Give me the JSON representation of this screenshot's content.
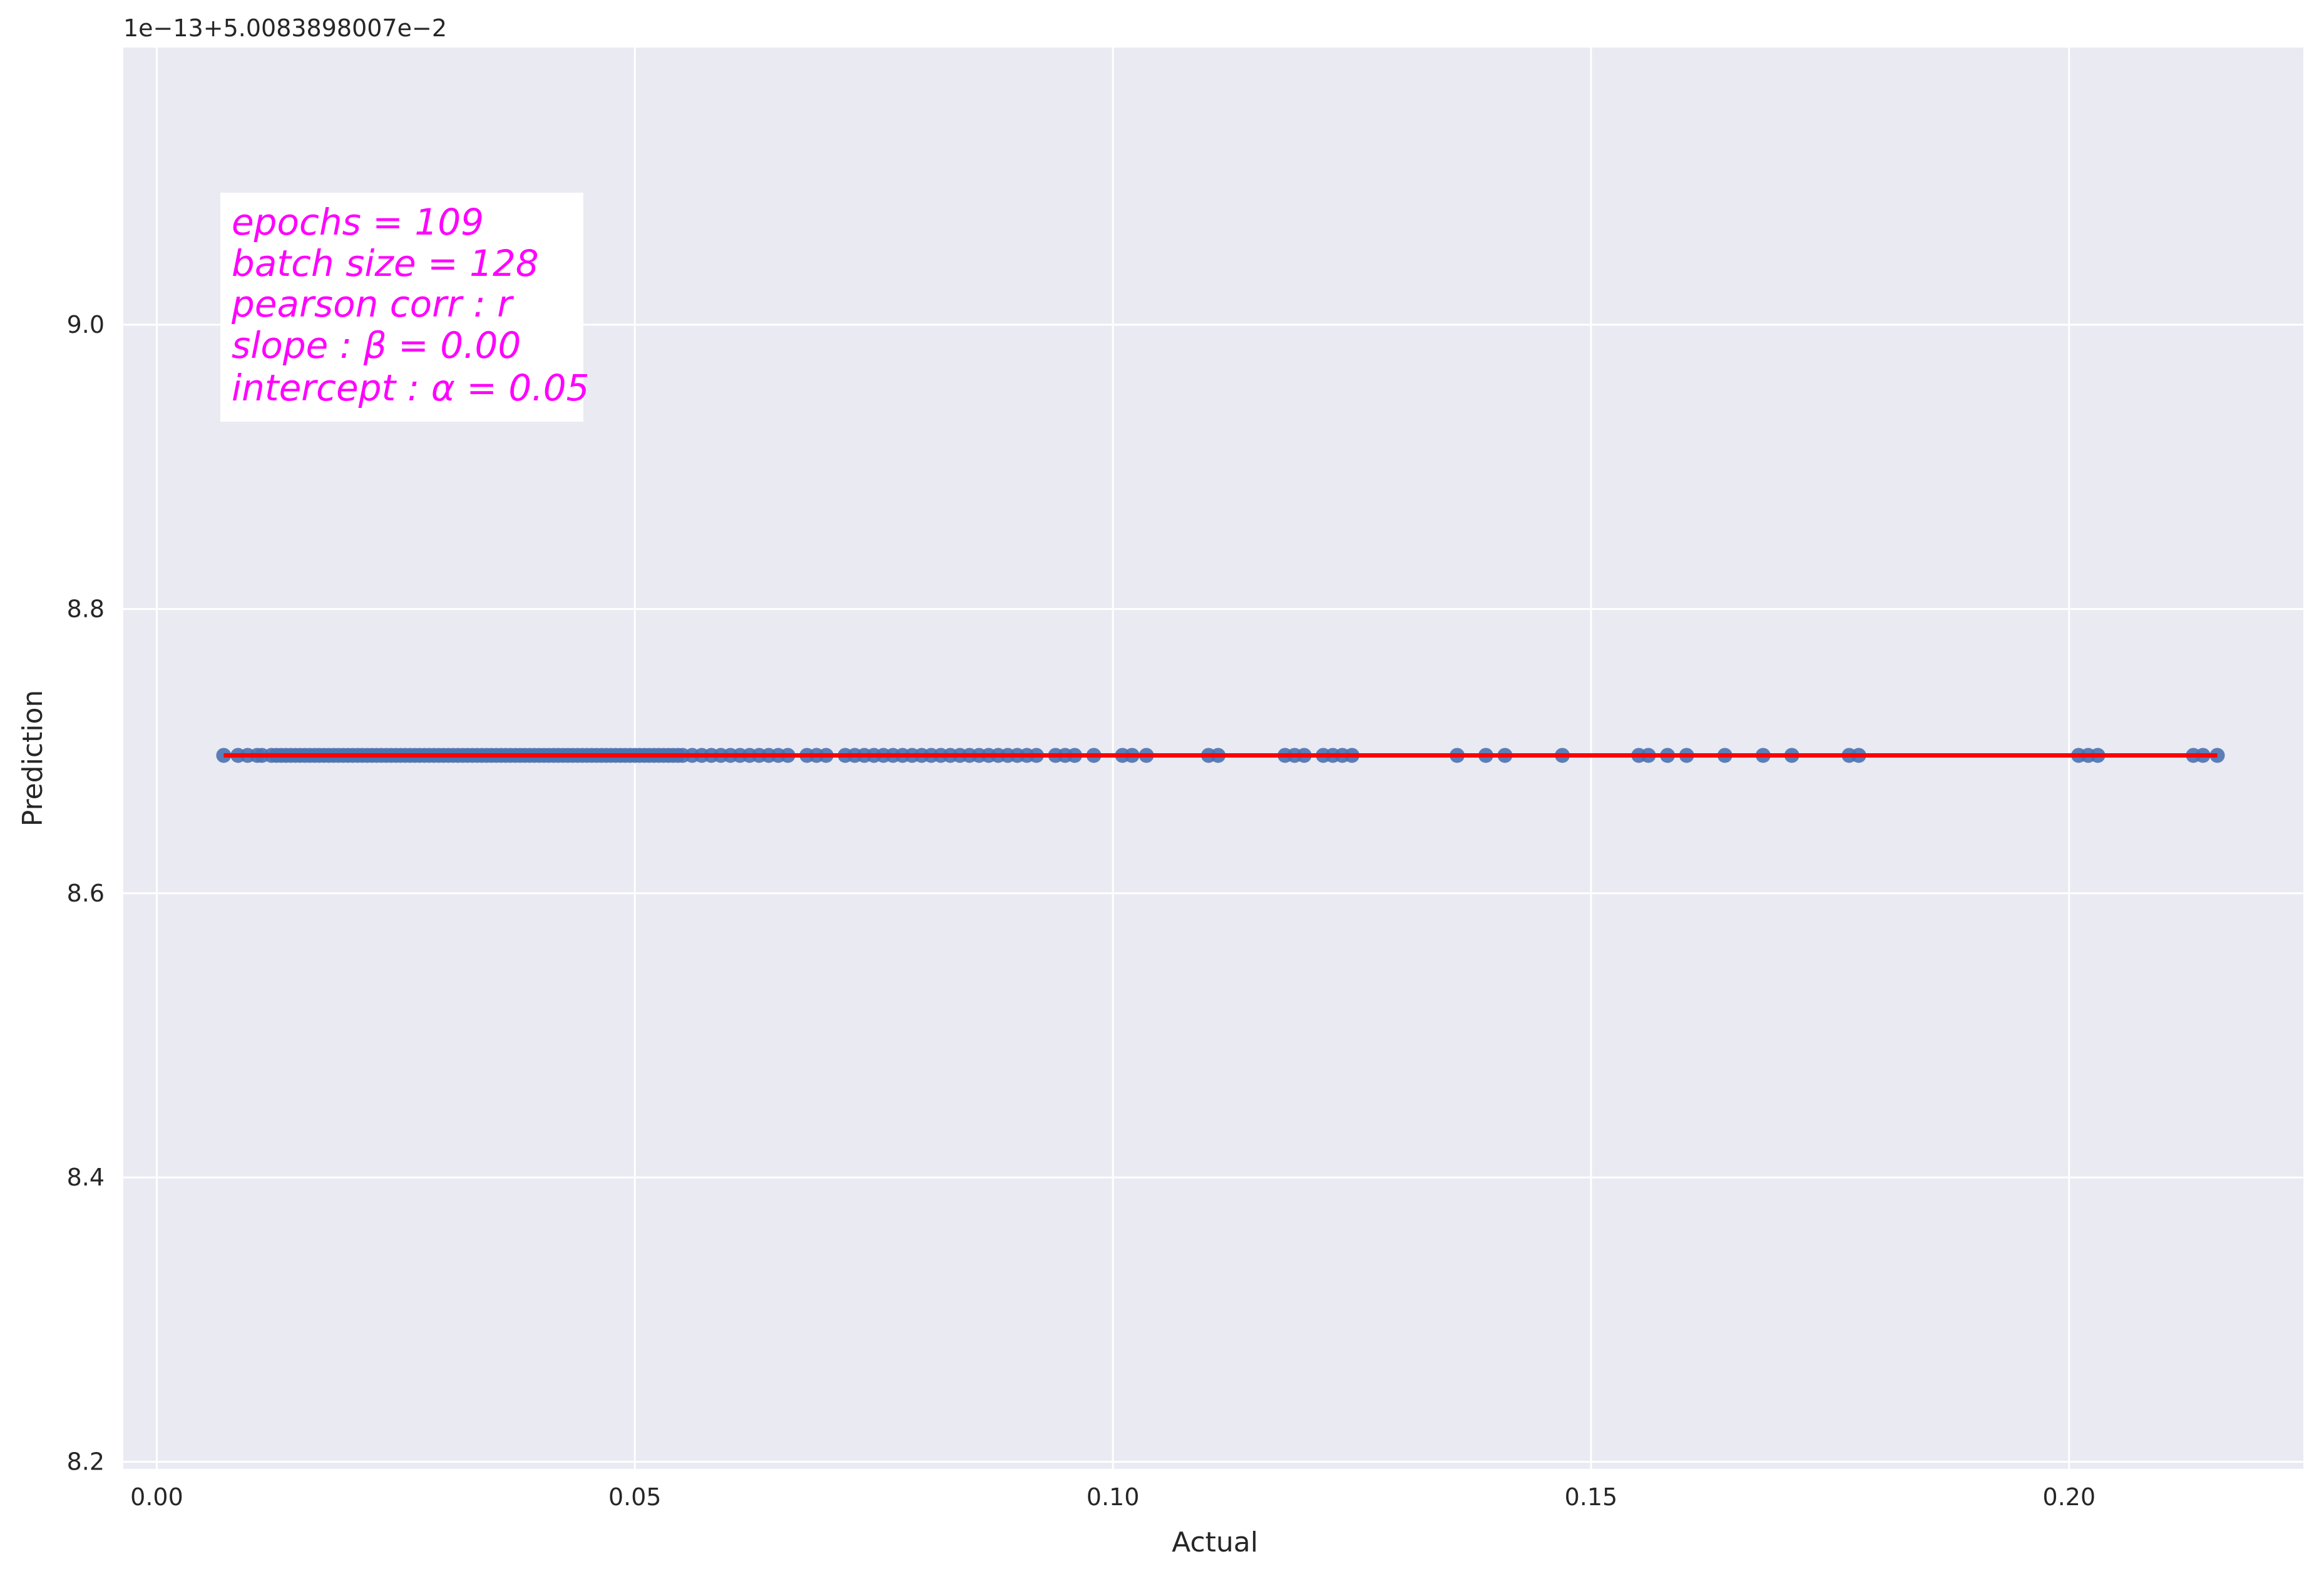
{
  "chart_data": {
    "type": "scatter",
    "title": "",
    "xlabel": "Actual",
    "ylabel": "Prediction",
    "y_offset_label": "1e−13+5.0083898007e−2",
    "xlim": [
      -0.0035,
      0.2245
    ],
    "ylim": [
      8.195,
      9.195
    ],
    "xticks": [
      0.0,
      0.05,
      0.1,
      0.15,
      0.2
    ],
    "xtick_labels": [
      "0.00",
      "0.05",
      "0.10",
      "0.15",
      "0.20"
    ],
    "yticks": [
      8.2,
      8.4,
      8.6,
      8.8,
      9.0
    ],
    "ytick_labels": [
      "8.2",
      "8.4",
      "8.6",
      "8.8",
      "9.0"
    ],
    "grid": true,
    "background_color": "#eaeaf2",
    "grid_color": "#ffffff",
    "point_color": "#4c72b0",
    "line_color": "#ff0000",
    "annotation_color": "#ff00ff",
    "series": [
      {
        "kind": "scatter",
        "y_value": 8.697,
        "x": [
          0.007,
          0.0085,
          0.0095,
          0.0105,
          0.011,
          0.012,
          0.0125,
          0.013,
          0.0135,
          0.014,
          0.0145,
          0.015,
          0.0155,
          0.016,
          0.0165,
          0.017,
          0.0175,
          0.018,
          0.0185,
          0.019,
          0.0195,
          0.02,
          0.0205,
          0.021,
          0.0215,
          0.022,
          0.0225,
          0.023,
          0.0235,
          0.024,
          0.0245,
          0.025,
          0.0255,
          0.026,
          0.0265,
          0.027,
          0.0275,
          0.028,
          0.0285,
          0.029,
          0.0295,
          0.03,
          0.0305,
          0.031,
          0.0315,
          0.032,
          0.0325,
          0.033,
          0.0335,
          0.034,
          0.0345,
          0.035,
          0.0355,
          0.036,
          0.0365,
          0.037,
          0.0375,
          0.038,
          0.0385,
          0.039,
          0.0395,
          0.04,
          0.0405,
          0.041,
          0.0415,
          0.042,
          0.0425,
          0.043,
          0.0435,
          0.044,
          0.0445,
          0.045,
          0.0455,
          0.046,
          0.0465,
          0.047,
          0.0475,
          0.048,
          0.0485,
          0.049,
          0.0495,
          0.05,
          0.0505,
          0.051,
          0.0515,
          0.052,
          0.0525,
          0.053,
          0.0535,
          0.054,
          0.0545,
          0.055,
          0.056,
          0.057,
          0.058,
          0.059,
          0.06,
          0.061,
          0.062,
          0.063,
          0.064,
          0.065,
          0.066,
          0.068,
          0.069,
          0.07,
          0.072,
          0.073,
          0.074,
          0.075,
          0.076,
          0.077,
          0.078,
          0.079,
          0.08,
          0.081,
          0.082,
          0.083,
          0.084,
          0.085,
          0.086,
          0.087,
          0.088,
          0.089,
          0.09,
          0.091,
          0.092,
          0.094,
          0.095,
          0.096,
          0.098,
          0.101,
          0.102,
          0.1035,
          0.11,
          0.111,
          0.118,
          0.119,
          0.12,
          0.122,
          0.123,
          0.124,
          0.125,
          0.136,
          0.139,
          0.141,
          0.147,
          0.155,
          0.156,
          0.158,
          0.16,
          0.164,
          0.168,
          0.171,
          0.177,
          0.178,
          0.201,
          0.202,
          0.203,
          0.213,
          0.214,
          0.2155
        ]
      },
      {
        "kind": "line",
        "x": [
          0.007,
          0.2155
        ],
        "y": [
          8.697,
          8.697
        ]
      }
    ],
    "annotation_lines": [
      "epochs = 109",
      "batch size = 128",
      "pearson corr : r",
      "slope : β = 0.00",
      "intercept : α = 0.05"
    ]
  }
}
